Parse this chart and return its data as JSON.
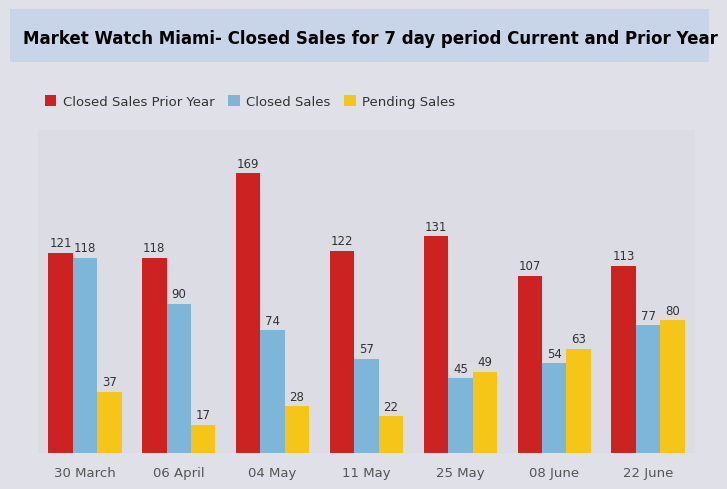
{
  "title": "Market Watch Miami- Closed Sales for 7 day period Current and Prior Year",
  "categories": [
    "30 March",
    "06 April",
    "04 May",
    "11 May",
    "25 May",
    "08 June",
    "22 June"
  ],
  "series": {
    "Closed Sales Prior Year": [
      121,
      118,
      169,
      122,
      131,
      107,
      113
    ],
    "Closed Sales": [
      118,
      90,
      74,
      57,
      45,
      54,
      77
    ],
    "Pending Sales": [
      37,
      17,
      28,
      22,
      49,
      63,
      80
    ]
  },
  "colors": {
    "Closed Sales Prior Year": "#CC2222",
    "Closed Sales": "#7EB6D9",
    "Pending Sales": "#F5C518"
  },
  "bar_width": 0.26,
  "ylim": [
    0,
    195
  ],
  "background_color": "#E0E0E8",
  "plot_bg_color": "#DCDCE4",
  "title_bg_color": "#C8D4E8",
  "title_fontsize": 12,
  "legend_fontsize": 9.5,
  "label_fontsize": 8.5,
  "tick_fontsize": 9.5
}
